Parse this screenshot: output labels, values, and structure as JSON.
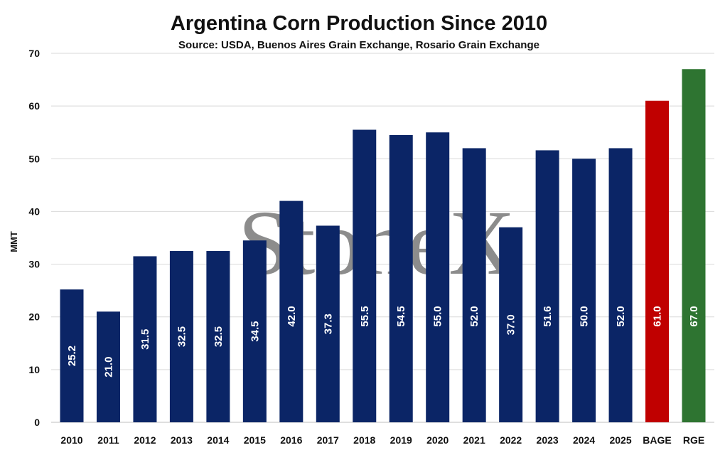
{
  "chart_data": {
    "type": "bar",
    "title": "Argentina Corn Production Since 2010",
    "subtitle": "Source: USDA, Buenos Aires Grain Exchange, Rosario Grain Exchange",
    "xlabel": "",
    "ylabel": "MMT",
    "ylim": [
      0,
      70
    ],
    "yticks": [
      0,
      10,
      20,
      30,
      40,
      50,
      60,
      70
    ],
    "grid": true,
    "categories": [
      "2010",
      "2011",
      "2012",
      "2013",
      "2014",
      "2015",
      "2016",
      "2017",
      "2018",
      "2019",
      "2020",
      "2021",
      "2022",
      "2023",
      "2024",
      "2025",
      "BAGE",
      "RGE"
    ],
    "values": [
      25.2,
      21.0,
      31.5,
      32.5,
      32.5,
      34.5,
      42.0,
      37.3,
      55.5,
      54.5,
      55.0,
      52.0,
      37.0,
      51.6,
      50.0,
      52.0,
      61.0,
      67.0
    ],
    "data_labels": [
      "25.2",
      "21.0",
      "31.5",
      "32.5",
      "32.5",
      "34.5",
      "42.0",
      "37.3",
      "55.5",
      "54.5",
      "55.0",
      "52.0",
      "37.0",
      "51.6",
      "50.0",
      "52.0",
      "61.0",
      "67.0"
    ],
    "colors": [
      "#0b2566",
      "#0b2566",
      "#0b2566",
      "#0b2566",
      "#0b2566",
      "#0b2566",
      "#0b2566",
      "#0b2566",
      "#0b2566",
      "#0b2566",
      "#0b2566",
      "#0b2566",
      "#0b2566",
      "#0b2566",
      "#0b2566",
      "#0b2566",
      "#c00000",
      "#2e7431"
    ],
    "watermark": "StoneX"
  }
}
